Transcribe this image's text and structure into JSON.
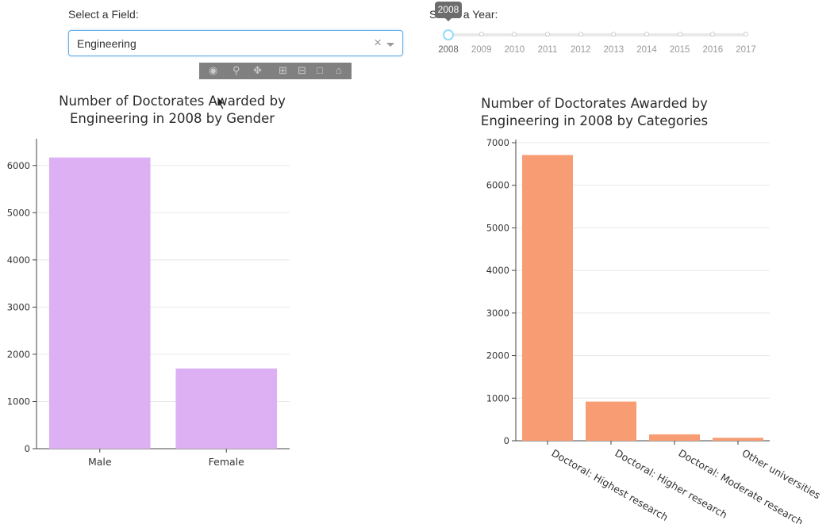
{
  "field_selector": {
    "label": "Select a Field:",
    "selected": "Engineering",
    "clear_glyph": "×"
  },
  "year_slider": {
    "label": "Select a Year:",
    "tooltip": "2008",
    "marks": [
      "2008",
      "2009",
      "2010",
      "2011",
      "2012",
      "2013",
      "2014",
      "2015",
      "2016",
      "2017"
    ],
    "selected": "2008"
  },
  "modebar": {
    "icons": [
      "camera-icon",
      "zoom-icon",
      "pan-icon",
      "zoom-in-icon",
      "zoom-out-icon",
      "autoscale-icon",
      "home-icon"
    ]
  },
  "chart_data": [
    {
      "type": "bar",
      "title_lines": [
        "Number of Doctorates Awarded by",
        "Engineering in 2008 by Gender"
      ],
      "categories": [
        "Male",
        "Female"
      ],
      "values": [
        6170,
        1700
      ],
      "ylim": [
        0,
        6500
      ],
      "yticks": [
        0,
        1000,
        2000,
        3000,
        4000,
        5000,
        6000
      ],
      "color": "#dcb0f2",
      "grid": true
    },
    {
      "type": "bar",
      "title_lines": [
        "Number of Doctorates Awarded by",
        "Engineering in 2008 by Categories"
      ],
      "categories": [
        "Doctoral: Highest research",
        "Doctoral: Higher research",
        "Doctoral: Moderate research",
        "Other universities"
      ],
      "values": [
        6710,
        920,
        150,
        70
      ],
      "ylim": [
        0,
        7000
      ],
      "yticks": [
        0,
        1000,
        2000,
        3000,
        4000,
        5000,
        6000,
        7000
      ],
      "color": "#f89c74",
      "grid": true
    }
  ]
}
